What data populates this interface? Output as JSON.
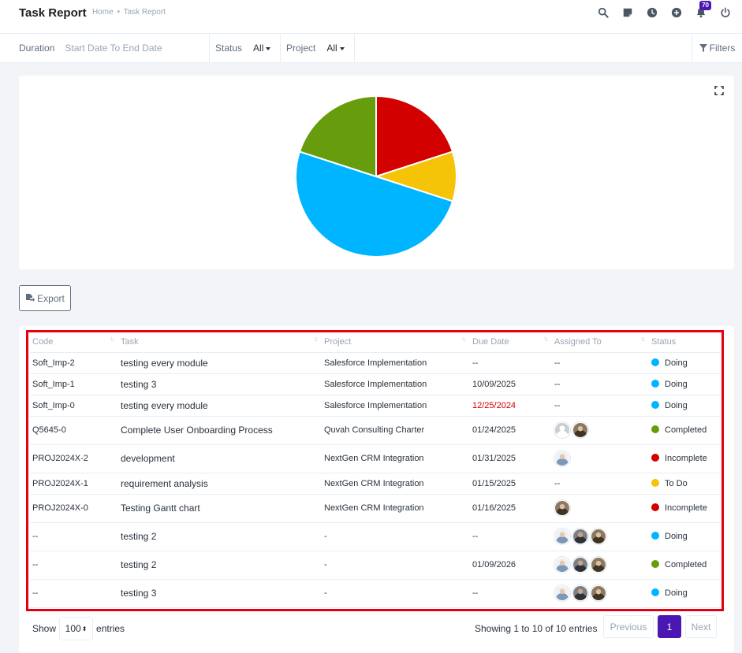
{
  "header": {
    "title": "Task Report",
    "breadcrumb": [
      "Home",
      "Task Report"
    ],
    "breadcrumb_sep": "•",
    "notification_count": "70",
    "icons": [
      "search-icon",
      "sticky-note-icon",
      "clock-icon",
      "plus-circle-icon",
      "bell-icon",
      "power-icon"
    ]
  },
  "filters": {
    "duration_label": "Duration",
    "duration_placeholder": "Start Date To End Date",
    "status_label": "Status",
    "status_value": "All",
    "project_label": "Project",
    "project_value": "All",
    "filters_label": "Filters"
  },
  "chart_data": {
    "type": "pie",
    "slices": [
      {
        "status": "Incomplete",
        "value": 2,
        "color": "#d30000"
      },
      {
        "status": "To Do",
        "value": 1,
        "color": "#f5c308"
      },
      {
        "status": "Doing",
        "value": 5,
        "color": "#00b5ff"
      },
      {
        "status": "Completed",
        "value": 2,
        "color": "#679c0d"
      }
    ]
  },
  "export_label": "Export",
  "table": {
    "columns": [
      "Code",
      "Task",
      "Project",
      "Due Date",
      "Assigned To",
      "Status"
    ],
    "rows": [
      {
        "code": "Soft_Imp-2",
        "task": "testing every module",
        "project": "Salesforce Implementation",
        "due": "--",
        "overdue": false,
        "assigned_text": "--",
        "avatars": [],
        "status": "Doing",
        "status_color": "#00b5ff"
      },
      {
        "code": "Soft_Imp-1",
        "task": "testing 3",
        "project": "Salesforce Implementation",
        "due": "10/09/2025",
        "overdue": false,
        "assigned_text": "--",
        "avatars": [],
        "status": "Doing",
        "status_color": "#00b5ff"
      },
      {
        "code": "Soft_Imp-0",
        "task": "testing every module",
        "project": "Salesforce Implementation",
        "due": "12/25/2024",
        "overdue": true,
        "assigned_text": "--",
        "avatars": [],
        "status": "Doing",
        "status_color": "#00b5ff"
      },
      {
        "code": "Q5645-0",
        "task": "Complete User Onboarding Process",
        "project": "Quvah Consulting Charter",
        "due": "01/24/2025",
        "overdue": false,
        "assigned_text": "",
        "avatars": [
          "grey",
          "brown"
        ],
        "status": "Completed",
        "status_color": "#679c0d"
      },
      {
        "code": "PROJ2024X-2",
        "task": "development",
        "project": "NextGen CRM Integration",
        "due": "01/31/2025",
        "overdue": false,
        "assigned_text": "",
        "avatars": [
          "light"
        ],
        "status": "Incomplete",
        "status_color": "#d30000"
      },
      {
        "code": "PROJ2024X-1",
        "task": "requirement analysis",
        "project": "NextGen CRM Integration",
        "due": "01/15/2025",
        "overdue": false,
        "assigned_text": "--",
        "avatars": [],
        "status": "To Do",
        "status_color": "#f5c308"
      },
      {
        "code": "PROJ2024X-0",
        "task": "Testing Gantt chart",
        "project": "NextGen CRM Integration",
        "due": "01/16/2025",
        "overdue": false,
        "assigned_text": "",
        "avatars": [
          "brown"
        ],
        "status": "Incomplete",
        "status_color": "#d30000"
      },
      {
        "code": "--",
        "task": "testing 2",
        "project": "-",
        "due": "--",
        "overdue": false,
        "assigned_text": "",
        "avatars": [
          "light",
          "dark",
          "brown"
        ],
        "status": "Doing",
        "status_color": "#00b5ff"
      },
      {
        "code": "--",
        "task": "testing 2",
        "project": "-",
        "due": "01/09/2026",
        "overdue": false,
        "assigned_text": "",
        "avatars": [
          "light",
          "dark",
          "brown"
        ],
        "status": "Completed",
        "status_color": "#679c0d"
      },
      {
        "code": "--",
        "task": "testing 3",
        "project": "-",
        "due": "--",
        "overdue": false,
        "assigned_text": "",
        "avatars": [
          "light",
          "dark",
          "brown"
        ],
        "status": "Doing",
        "status_color": "#00b5ff"
      }
    ]
  },
  "footer": {
    "show_label": "Show",
    "entries_value": "100",
    "entries_label": "entries",
    "info": "Showing 1 to 10 of 10 entries",
    "prev_label": "Previous",
    "current_page": "1",
    "next_label": "Next"
  },
  "colors": {
    "accent": "#4a17b3",
    "highlight": "#e3000f"
  }
}
